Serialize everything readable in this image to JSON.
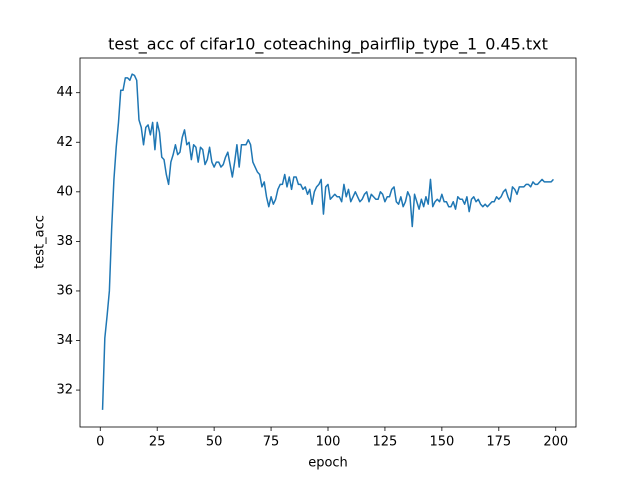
{
  "chart_data": {
    "type": "line",
    "title": "test_acc of cifar10_coteaching_pairflip_type_1_0.45.txt",
    "x_label": "epoch",
    "y_label": "test_acc",
    "x": [
      1,
      2,
      3,
      4,
      5,
      6,
      7,
      8,
      9,
      10,
      11,
      12,
      13,
      14,
      15,
      16,
      17,
      18,
      19,
      20,
      21,
      22,
      23,
      24,
      25,
      26,
      27,
      28,
      29,
      30,
      31,
      32,
      33,
      34,
      35,
      36,
      37,
      38,
      39,
      40,
      41,
      42,
      43,
      44,
      45,
      46,
      47,
      48,
      49,
      50,
      51,
      52,
      53,
      54,
      55,
      56,
      57,
      58,
      59,
      60,
      61,
      62,
      63,
      64,
      65,
      66,
      67,
      68,
      69,
      70,
      71,
      72,
      73,
      74,
      75,
      76,
      77,
      78,
      79,
      80,
      81,
      82,
      83,
      84,
      85,
      86,
      87,
      88,
      89,
      90,
      91,
      92,
      93,
      94,
      95,
      96,
      97,
      98,
      99,
      100,
      101,
      102,
      103,
      104,
      105,
      106,
      107,
      108,
      109,
      110,
      111,
      112,
      113,
      114,
      115,
      116,
      117,
      118,
      119,
      120,
      121,
      122,
      123,
      124,
      125,
      126,
      127,
      128,
      129,
      130,
      131,
      132,
      133,
      134,
      135,
      136,
      137,
      138,
      139,
      140,
      141,
      142,
      143,
      144,
      145,
      146,
      147,
      148,
      149,
      150,
      151,
      152,
      153,
      154,
      155,
      156,
      157,
      158,
      159,
      160,
      161,
      162,
      163,
      164,
      165,
      166,
      167,
      168,
      169,
      170,
      171,
      172,
      173,
      174,
      175,
      176,
      177,
      178,
      179,
      180,
      181,
      182,
      183,
      184,
      185,
      186,
      187,
      188,
      189,
      190,
      191,
      192,
      193,
      194,
      195,
      196,
      197,
      198,
      199
    ],
    "series": [
      {
        "name": "test_acc",
        "color": "#1f77b4",
        "values": [
          31.2,
          34.1,
          35.0,
          36.0,
          38.5,
          40.5,
          41.8,
          42.8,
          44.1,
          44.1,
          44.6,
          44.6,
          44.5,
          44.75,
          44.7,
          44.5,
          42.9,
          42.6,
          41.9,
          42.6,
          42.7,
          42.3,
          42.8,
          41.7,
          42.8,
          42.4,
          41.4,
          41.3,
          40.7,
          40.3,
          41.2,
          41.5,
          41.9,
          41.5,
          41.6,
          42.2,
          42.5,
          41.9,
          42.0,
          41.3,
          41.9,
          41.8,
          41.2,
          41.8,
          41.7,
          41.1,
          41.3,
          41.8,
          41.2,
          41.0,
          41.2,
          41.2,
          41.0,
          41.1,
          41.4,
          41.6,
          41.1,
          40.6,
          41.2,
          41.9,
          41.0,
          41.9,
          41.9,
          41.9,
          42.1,
          41.9,
          41.2,
          41.0,
          40.8,
          40.7,
          40.2,
          40.4,
          39.8,
          39.4,
          39.8,
          39.5,
          39.7,
          40.1,
          40.3,
          40.3,
          40.7,
          40.2,
          40.6,
          40.1,
          40.6,
          40.6,
          40.3,
          40.3,
          40.1,
          40.2,
          39.9,
          40.1,
          39.5,
          40.0,
          40.2,
          40.3,
          40.5,
          39.1,
          40.2,
          40.3,
          39.7,
          39.8,
          39.9,
          39.8,
          39.8,
          39.6,
          40.3,
          39.8,
          40.1,
          39.6,
          39.8,
          40.0,
          39.8,
          39.6,
          39.7,
          39.9,
          40.0,
          39.6,
          39.9,
          39.8,
          39.7,
          39.7,
          40.0,
          39.9,
          39.6,
          39.8,
          39.8,
          40.1,
          40.2,
          39.6,
          39.5,
          39.8,
          39.4,
          39.6,
          40.0,
          39.8,
          38.6,
          39.9,
          39.6,
          39.3,
          39.7,
          39.4,
          39.8,
          39.5,
          40.5,
          39.4,
          39.6,
          39.7,
          39.6,
          39.9,
          39.6,
          39.6,
          39.4,
          39.4,
          39.6,
          39.3,
          39.8,
          39.7,
          39.7,
          39.5,
          39.8,
          39.2,
          39.7,
          39.8,
          39.6,
          39.7,
          39.5,
          39.4,
          39.5,
          39.4,
          39.5,
          39.6,
          39.6,
          39.8,
          39.7,
          39.8,
          40.0,
          40.1,
          39.8,
          39.6,
          40.2,
          40.1,
          39.9,
          40.2,
          40.2,
          40.2,
          40.3,
          40.3,
          40.2,
          40.4,
          40.3,
          40.3,
          40.4,
          40.5,
          40.4,
          40.4,
          40.4,
          40.4,
          40.5
        ]
      }
    ],
    "xlim": [
      -8.9,
      208.9
    ],
    "ylim": [
      30.51,
      45.4
    ],
    "xticks": [
      0,
      25,
      50,
      75,
      100,
      125,
      150,
      175,
      200
    ],
    "yticks": [
      32,
      34,
      36,
      38,
      40,
      42,
      44
    ]
  }
}
